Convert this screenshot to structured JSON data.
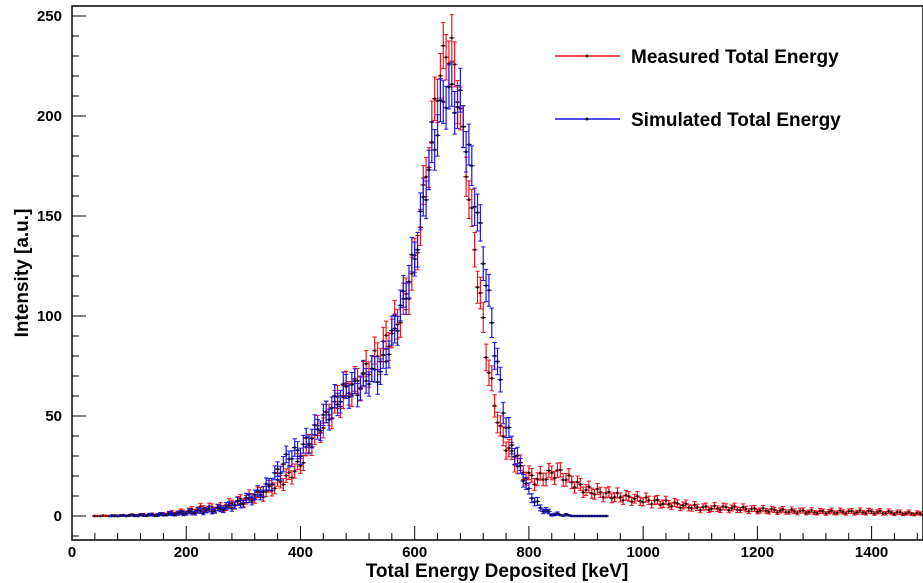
{
  "chart_data": {
    "type": "scatter",
    "xlabel": "Total Energy Deposited [keV]",
    "ylabel": "Intensity [a.u.]",
    "xlim": [
      0,
      1490
    ],
    "ylim": [
      -12,
      255
    ],
    "x_ticks": [
      0,
      200,
      400,
      600,
      800,
      1000,
      1200,
      1400
    ],
    "y_ticks": [
      0,
      50,
      100,
      150,
      200,
      250
    ],
    "grid": false,
    "legend_position": "top-right",
    "error_bars": true,
    "series": [
      {
        "name": "Measured Total Energy",
        "color": "#e8141b",
        "x_range": [
          40,
          1490
        ],
        "points": [
          [
            40,
            0
          ],
          [
            150,
            0.5
          ],
          [
            200,
            2
          ],
          [
            230,
            4
          ],
          [
            260,
            4
          ],
          [
            300,
            8
          ],
          [
            340,
            12
          ],
          [
            380,
            20
          ],
          [
            400,
            26
          ],
          [
            420,
            38
          ],
          [
            440,
            46
          ],
          [
            460,
            55
          ],
          [
            480,
            62
          ],
          [
            500,
            66
          ],
          [
            520,
            74
          ],
          [
            540,
            82
          ],
          [
            560,
            92
          ],
          [
            580,
            104
          ],
          [
            600,
            125
          ],
          [
            620,
            170
          ],
          [
            640,
            215
          ],
          [
            655,
            233
          ],
          [
            665,
            232
          ],
          [
            675,
            215
          ],
          [
            690,
            175
          ],
          [
            710,
            120
          ],
          [
            730,
            72
          ],
          [
            750,
            42
          ],
          [
            770,
            30
          ],
          [
            790,
            22
          ],
          [
            810,
            18
          ],
          [
            830,
            20
          ],
          [
            850,
            22
          ],
          [
            870,
            18
          ],
          [
            900,
            13
          ],
          [
            950,
            10
          ],
          [
            1000,
            8
          ],
          [
            1050,
            6
          ],
          [
            1100,
            4
          ],
          [
            1150,
            4
          ],
          [
            1200,
            3
          ],
          [
            1250,
            2.5
          ],
          [
            1300,
            2
          ],
          [
            1350,
            2
          ],
          [
            1400,
            2
          ],
          [
            1450,
            1.5
          ],
          [
            1490,
            1
          ]
        ]
      },
      {
        "name": "Simulated Total Energy",
        "color": "#1a12e8",
        "x_range": [
          70,
          935
        ],
        "points": [
          [
            70,
            0
          ],
          [
            150,
            0.5
          ],
          [
            200,
            1.5
          ],
          [
            250,
            3
          ],
          [
            280,
            5
          ],
          [
            300,
            7
          ],
          [
            320,
            10
          ],
          [
            340,
            14
          ],
          [
            360,
            22
          ],
          [
            380,
            30
          ],
          [
            400,
            33
          ],
          [
            420,
            40
          ],
          [
            440,
            48
          ],
          [
            460,
            56
          ],
          [
            480,
            64
          ],
          [
            500,
            64
          ],
          [
            520,
            70
          ],
          [
            540,
            72
          ],
          [
            560,
            88
          ],
          [
            580,
            108
          ],
          [
            600,
            130
          ],
          [
            620,
            165
          ],
          [
            640,
            195
          ],
          [
            655,
            212
          ],
          [
            665,
            210
          ],
          [
            680,
            205
          ],
          [
            700,
            172
          ],
          [
            720,
            130
          ],
          [
            740,
            85
          ],
          [
            760,
            45
          ],
          [
            780,
            28
          ],
          [
            800,
            12
          ],
          [
            820,
            4
          ],
          [
            840,
            1
          ],
          [
            880,
            0
          ],
          [
            935,
            0
          ]
        ]
      }
    ]
  }
}
